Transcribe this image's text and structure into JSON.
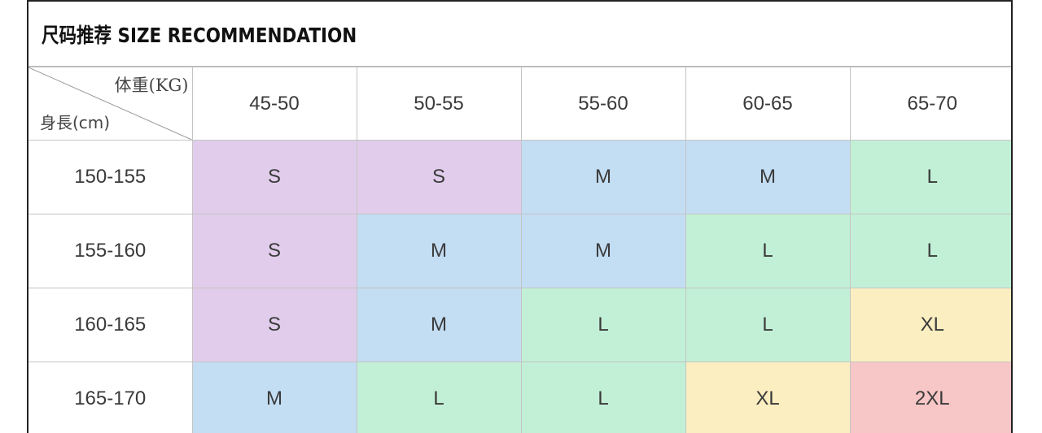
{
  "title": "尺码推荐  SIZE RECOMMENDATION",
  "corner": {
    "weight_label": "体重(KG)",
    "height_label": "身長(cm)"
  },
  "weight_ranges": [
    "45-50",
    "50-55",
    "55-60",
    "60-65",
    "65-70"
  ],
  "rows": [
    {
      "height": "150-155",
      "sizes": [
        "S",
        "S",
        "M",
        "M",
        "L"
      ]
    },
    {
      "height": "155-160",
      "sizes": [
        "S",
        "M",
        "M",
        "L",
        "L"
      ]
    },
    {
      "height": "160-165",
      "sizes": [
        "S",
        "M",
        "L",
        "L",
        "XL"
      ]
    },
    {
      "height": "165-170",
      "sizes": [
        "M",
        "L",
        "L",
        "XL",
        "2XL"
      ]
    }
  ],
  "size_colors": {
    "S": "#e1cdeb",
    "M": "#c3ddf3",
    "L": "#c2f0d6",
    "XL": "#fbeec0",
    "2XL": "#f7c6c6"
  }
}
